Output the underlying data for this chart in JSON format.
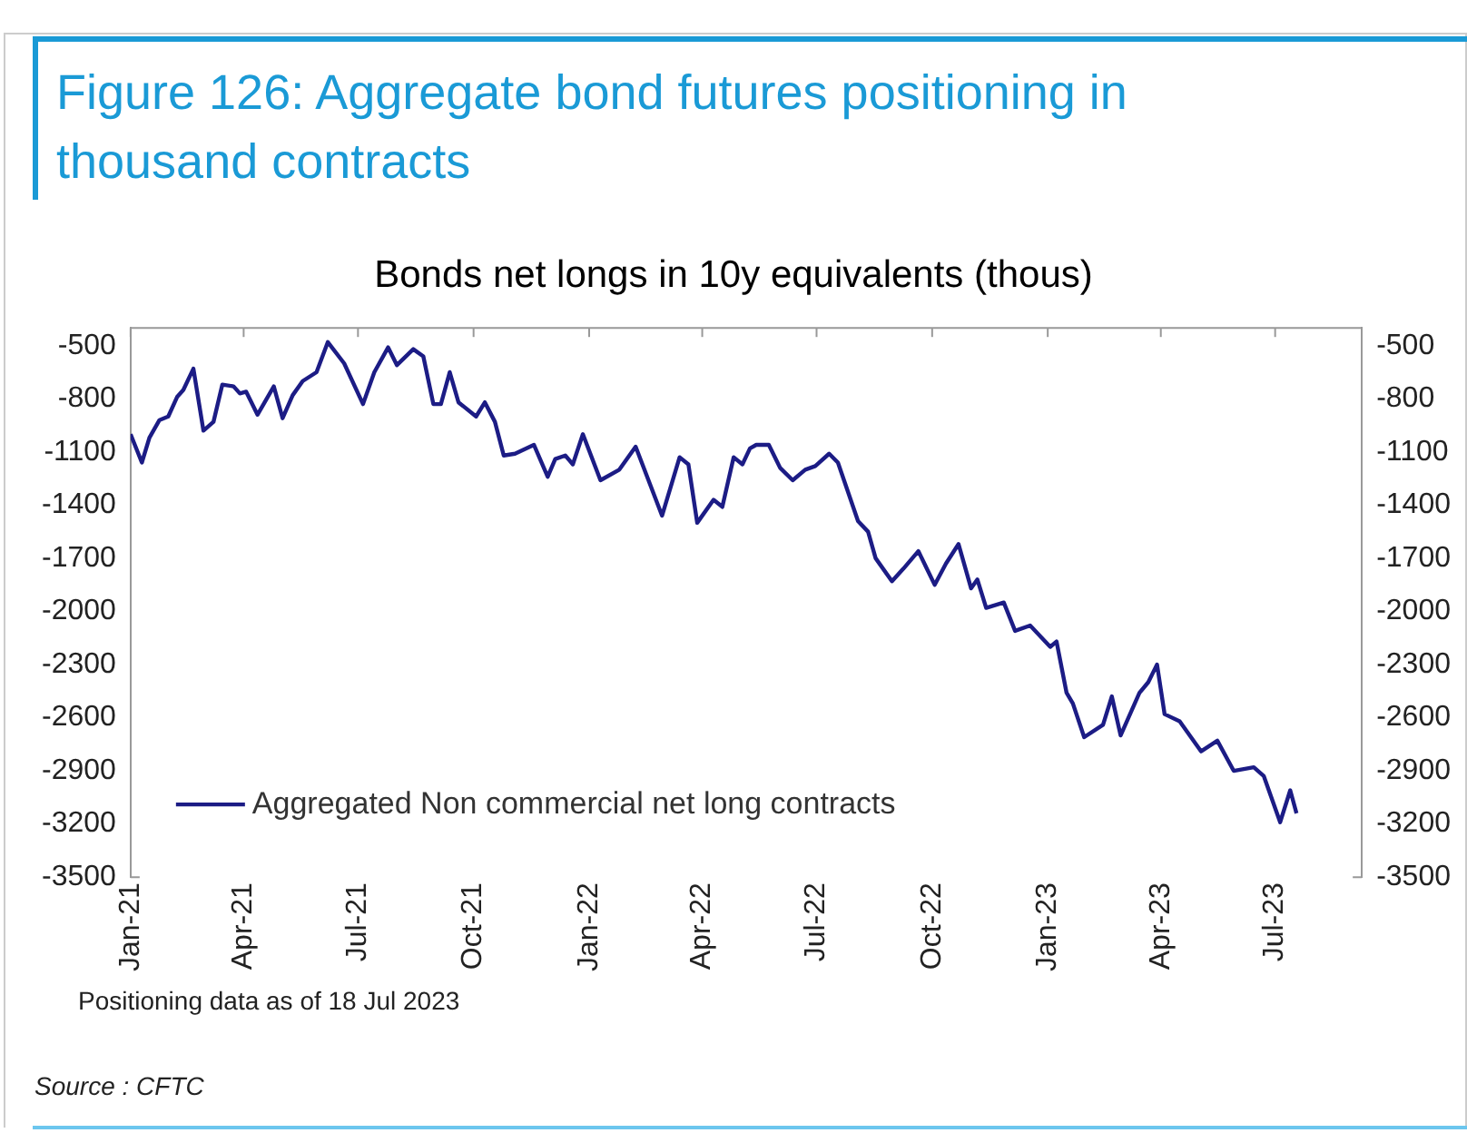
{
  "chart_data": {
    "type": "line",
    "title": "Figure 126: Aggregate bond futures positioning in thousand contracts",
    "subtitle": "Bonds net longs in 10y equivalents (thous)",
    "annotations": [
      "Positioning data as of 18 Jul 2023",
      "Source : CFTC"
    ],
    "x": [
      "2021-01-01",
      "2021-01-10",
      "2021-01-16",
      "2021-01-24",
      "2021-01-31",
      "2021-02-07",
      "2021-02-12",
      "2021-02-20",
      "2021-02-28",
      "2021-03-08",
      "2021-03-15",
      "2021-03-24",
      "2021-03-29",
      "2021-04-03",
      "2021-04-12",
      "2021-04-25",
      "2021-05-02",
      "2021-05-10",
      "2021-05-18",
      "2021-05-29",
      "2021-06-07",
      "2021-06-20",
      "2021-07-05",
      "2021-07-14",
      "2021-07-25",
      "2021-08-01",
      "2021-08-14",
      "2021-08-22",
      "2021-08-30",
      "2021-09-05",
      "2021-09-12",
      "2021-09-19",
      "2021-10-03",
      "2021-10-10",
      "2021-10-18",
      "2021-10-25",
      "2021-11-03",
      "2021-11-18",
      "2021-11-29",
      "2021-12-05",
      "2021-12-13",
      "2021-12-19",
      "2021-12-27",
      "2022-01-10",
      "2022-01-25",
      "2022-02-07",
      "2022-02-28",
      "2022-03-14",
      "2022-03-21",
      "2022-03-28",
      "2022-04-10",
      "2022-04-17",
      "2022-04-26",
      "2022-05-03",
      "2022-05-09",
      "2022-05-14",
      "2022-05-24",
      "2022-06-02",
      "2022-06-12",
      "2022-06-22",
      "2022-06-30",
      "2022-07-11",
      "2022-07-18",
      "2022-08-03",
      "2022-08-11",
      "2022-08-17",
      "2022-08-30",
      "2022-09-08",
      "2022-09-20",
      "2022-10-03",
      "2022-10-12",
      "2022-10-22",
      "2022-11-01",
      "2022-11-06",
      "2022-11-13",
      "2022-11-27",
      "2022-12-06",
      "2022-12-18",
      "2023-01-03",
      "2023-01-08",
      "2023-01-16",
      "2023-01-21",
      "2023-01-30",
      "2023-02-14",
      "2023-02-21",
      "2023-02-28",
      "2023-03-15",
      "2023-03-22",
      "2023-03-29",
      "2023-04-04",
      "2023-04-16",
      "2023-05-03",
      "2023-05-16",
      "2023-05-29",
      "2023-06-14",
      "2023-06-22",
      "2023-07-05",
      "2023-07-13",
      "2023-07-18"
    ],
    "series": [
      {
        "name": "Aggregated Non commercial net long contracts",
        "color": "#1c1c85",
        "values": [
          -1000,
          -1160,
          -1020,
          -920,
          -900,
          -790,
          -750,
          -630,
          -980,
          -930,
          -720,
          -730,
          -770,
          -760,
          -890,
          -730,
          -910,
          -780,
          -700,
          -650,
          -480,
          -600,
          -830,
          -650,
          -510,
          -610,
          -520,
          -560,
          -830,
          -830,
          -650,
          -820,
          -900,
          -820,
          -930,
          -1120,
          -1110,
          -1060,
          -1240,
          -1140,
          -1120,
          -1170,
          -1000,
          -1260,
          -1200,
          -1070,
          -1460,
          -1130,
          -1170,
          -1500,
          -1370,
          -1410,
          -1130,
          -1170,
          -1080,
          -1060,
          -1060,
          -1190,
          -1260,
          -1200,
          -1180,
          -1110,
          -1160,
          -1490,
          -1550,
          -1700,
          -1830,
          -1760,
          -1660,
          -1850,
          -1730,
          -1620,
          -1870,
          -1820,
          -1980,
          -1950,
          -2110,
          -2080,
          -2200,
          -2170,
          -2460,
          -2520,
          -2710,
          -2640,
          -2480,
          -2700,
          -2460,
          -2400,
          -2300,
          -2580,
          -2620,
          -2790,
          -2730,
          -2900,
          -2880,
          -2930,
          -3190,
          -3010,
          -3140
        ]
      }
    ],
    "xlim": [
      "2021-01-01",
      "2023-09-08"
    ],
    "xticks": [
      {
        "value": "2021-01",
        "label": "Jan-21"
      },
      {
        "value": "2021-04",
        "label": "Apr-21"
      },
      {
        "value": "2021-07",
        "label": "Jul-21"
      },
      {
        "value": "2021-10",
        "label": "Oct-21"
      },
      {
        "value": "2022-01",
        "label": "Jan-22"
      },
      {
        "value": "2022-04",
        "label": "Apr-22"
      },
      {
        "value": "2022-07",
        "label": "Jul-22"
      },
      {
        "value": "2022-10",
        "label": "Oct-22"
      },
      {
        "value": "2023-01",
        "label": "Jan-23"
      },
      {
        "value": "2023-04",
        "label": "Apr-23"
      },
      {
        "value": "2023-07",
        "label": "Jul-23"
      }
    ],
    "ylim": [
      -3500,
      -400
    ],
    "yticks": [
      -500,
      -800,
      -1100,
      -1400,
      -1700,
      -2000,
      -2300,
      -2600,
      -2900,
      -3200,
      -3500
    ],
    "y2lim": [
      -3500,
      -400
    ],
    "y2ticks": [
      -500,
      -800,
      -1100,
      -1400,
      -1700,
      -2000,
      -2300,
      -2600,
      -2900,
      -3200,
      -3500
    ],
    "grid": false,
    "legend": "bottom left",
    "marker": "none",
    "line_style": "solid"
  }
}
